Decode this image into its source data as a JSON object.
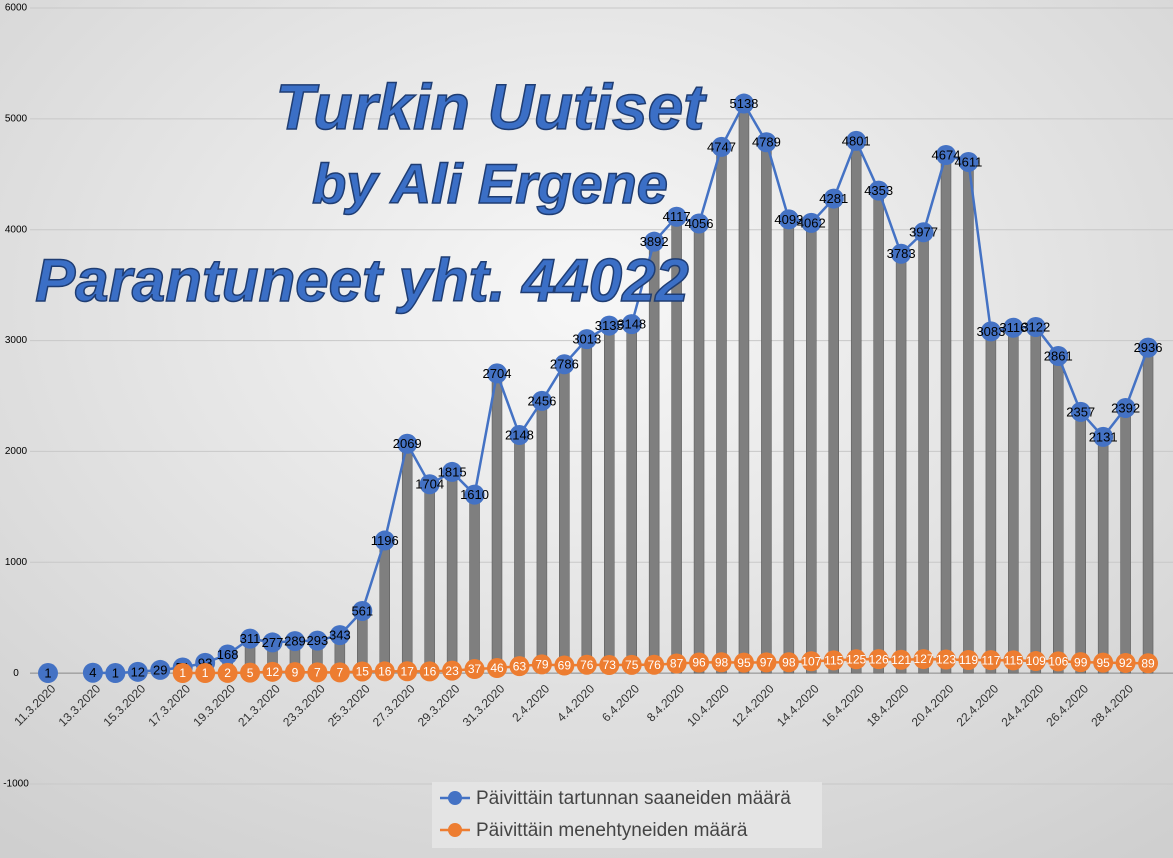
{
  "chart_data": {
    "type": "line",
    "title": "Turkin Uutiset",
    "subtitle": "by Ali Ergene",
    "annotation": "Parantuneet yht. 44022",
    "categories": [
      "11.3.2020",
      null,
      "13.3.2020",
      null,
      "15.3.2020",
      null,
      "17.3.2020",
      null,
      "19.3.2020",
      null,
      "21.3.2020",
      null,
      "23.3.2020",
      null,
      "25.3.2020",
      null,
      "27.3.2020",
      null,
      "29.3.2020",
      null,
      "31.3.2020",
      null,
      "2.4.2020",
      null,
      "4.4.2020",
      null,
      "6.4.2020",
      null,
      "8.4.2020",
      null,
      "10.4.2020",
      null,
      "12.4.2020",
      null,
      "14.4.2020",
      null,
      "16.4.2020",
      null,
      "18.4.2020",
      null,
      "20.4.2020",
      null,
      "22.4.2020",
      null,
      "24.4.2020",
      null,
      "26.4.2020",
      null,
      "28.4.2020",
      null
    ],
    "series": [
      {
        "name": "Päivittäin tartunnan saaneiden määrä",
        "color": "#4472c4",
        "values": [
          1,
          null,
          4,
          1,
          12,
          29,
          51,
          93,
          168,
          311,
          277,
          289,
          293,
          343,
          561,
          1196,
          2069,
          1704,
          1815,
          1610,
          2704,
          2148,
          2456,
          2786,
          3013,
          3135,
          3148,
          3892,
          4117,
          4056,
          4747,
          5138,
          4789,
          4093,
          4062,
          4281,
          4801,
          4353,
          3783,
          3977,
          4674,
          4611,
          3083,
          3116,
          3122,
          2861,
          2357,
          2131,
          2392,
          2936
        ]
      },
      {
        "name": "Päivittäin menehtyneiden määrä",
        "color": "#ed7d31",
        "values": [
          null,
          null,
          null,
          null,
          null,
          null,
          1,
          1,
          2,
          5,
          12,
          9,
          7,
          7,
          15,
          16,
          17,
          16,
          23,
          37,
          46,
          63,
          79,
          69,
          76,
          73,
          75,
          76,
          87,
          96,
          98,
          95,
          97,
          98,
          107,
          115,
          125,
          126,
          121,
          127,
          123,
          119,
          117,
          115,
          109,
          106,
          99,
          95,
          92,
          89
        ]
      }
    ],
    "bar_color": "#7f7f7f",
    "ylim": [
      -1000,
      6000
    ],
    "yticks": [
      -1000,
      0,
      1000,
      2000,
      3000,
      4000,
      5000,
      6000
    ],
    "grid": true,
    "legend": "bottom"
  }
}
